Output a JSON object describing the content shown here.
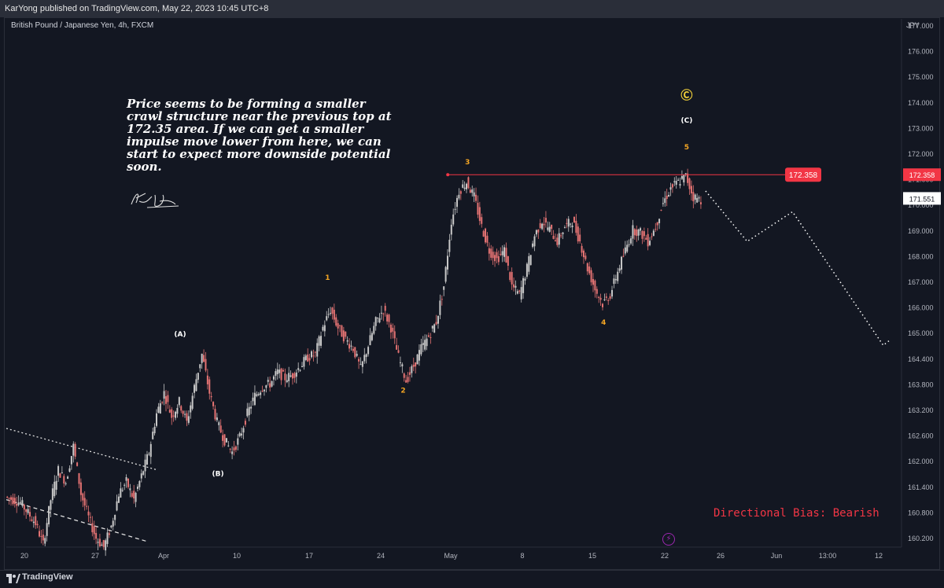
{
  "header": {
    "published": "KarYong published on TradingView.com, May 22, 2023 10:45 UTC+8"
  },
  "chart_data": {
    "type": "candlestick",
    "symbol": "British Pound / Japanese Yen, 4h, FXCM",
    "currency": "JPY",
    "ylim": [
      159.8,
      177.6
    ],
    "y_ticks": [
      "177.000",
      "176.000",
      "175.000",
      "174.000",
      "173.000",
      "172.000",
      "171.000",
      "170.000",
      "169.000",
      "168.000",
      "167.000",
      "166.000",
      "165.000",
      "164.400",
      "163.800",
      "163.200",
      "162.600",
      "162.000",
      "161.400",
      "160.800",
      "160.200"
    ],
    "x_ticks": [
      "20",
      "27",
      "Apr",
      "10",
      "17",
      "24",
      "May",
      "8",
      "15",
      "22",
      "26",
      "Jun",
      "13:00",
      "12"
    ],
    "bull_color": "#c8c8c8",
    "bear_color": "#e57373",
    "price_path": [
      [
        0,
        161.5
      ],
      [
        4,
        161.3
      ],
      [
        8,
        160.6
      ],
      [
        10,
        159.9
      ],
      [
        12,
        161.4
      ],
      [
        14,
        162.4
      ],
      [
        16,
        162.0
      ],
      [
        18,
        163.2
      ],
      [
        20,
        161.6
      ],
      [
        22,
        160.8
      ],
      [
        24,
        160.1
      ],
      [
        26,
        159.8
      ],
      [
        28,
        160.5
      ],
      [
        30,
        161.6
      ],
      [
        32,
        162.0
      ],
      [
        34,
        161.4
      ],
      [
        36,
        162.2
      ],
      [
        38,
        163.0
      ],
      [
        40,
        164.3
      ],
      [
        42,
        165.0
      ],
      [
        44,
        164.2
      ],
      [
        46,
        164.7
      ],
      [
        48,
        164.0
      ],
      [
        50,
        165.2
      ],
      [
        52,
        166.3
      ],
      [
        54,
        165.0
      ],
      [
        56,
        164.0
      ],
      [
        58,
        163.4
      ],
      [
        60,
        163.0
      ],
      [
        62,
        163.5
      ],
      [
        64,
        164.3
      ],
      [
        66,
        164.9
      ],
      [
        68,
        165.2
      ],
      [
        70,
        165.3
      ],
      [
        72,
        165.7
      ],
      [
        74,
        165.5
      ],
      [
        76,
        165.6
      ],
      [
        78,
        165.9
      ],
      [
        80,
        166.2
      ],
      [
        82,
        166.3
      ],
      [
        84,
        167.2
      ],
      [
        86,
        167.8
      ],
      [
        88,
        167.2
      ],
      [
        90,
        166.8
      ],
      [
        92,
        166.5
      ],
      [
        94,
        165.8
      ],
      [
        96,
        166.6
      ],
      [
        98,
        167.4
      ],
      [
        100,
        167.8
      ],
      [
        102,
        167.2
      ],
      [
        104,
        166.2
      ],
      [
        106,
        165.4
      ],
      [
        108,
        165.9
      ],
      [
        110,
        166.5
      ],
      [
        112,
        166.9
      ],
      [
        114,
        167.4
      ],
      [
        116,
        168.6
      ],
      [
        118,
        170.8
      ],
      [
        120,
        171.8
      ],
      [
        122,
        172.1
      ],
      [
        124,
        171.6
      ],
      [
        126,
        170.6
      ],
      [
        128,
        169.8
      ],
      [
        130,
        169.5
      ],
      [
        132,
        169.8
      ],
      [
        134,
        168.6
      ],
      [
        136,
        168.3
      ],
      [
        138,
        169.2
      ],
      [
        140,
        170.3
      ],
      [
        142,
        170.8
      ],
      [
        144,
        170.5
      ],
      [
        146,
        170.1
      ],
      [
        148,
        170.6
      ],
      [
        150,
        170.8
      ],
      [
        152,
        170.1
      ],
      [
        154,
        169.2
      ],
      [
        156,
        168.5
      ],
      [
        158,
        168.0
      ],
      [
        160,
        168.3
      ],
      [
        162,
        169.1
      ],
      [
        164,
        169.8
      ],
      [
        166,
        170.5
      ],
      [
        168,
        170.4
      ],
      [
        170,
        170.1
      ],
      [
        172,
        170.6
      ],
      [
        174,
        171.4
      ],
      [
        176,
        171.9
      ],
      [
        178,
        172.1
      ],
      [
        180,
        172.3
      ],
      [
        182,
        171.6
      ],
      [
        184,
        171.5
      ]
    ],
    "projection_path": [
      [
        185,
        171.8
      ],
      [
        196,
        170.1
      ],
      [
        208,
        171.1
      ],
      [
        232,
        166.6
      ],
      [
        234,
        166.8
      ]
    ],
    "resistance": {
      "value": 172.35,
      "label": "172.358",
      "color": "#f23645"
    },
    "last_price": {
      "label": "171.551",
      "value": 171.55
    },
    "wave_labels": [
      {
        "text": "1",
        "x": 85,
        "y": 168.8,
        "color": "#f5a623"
      },
      {
        "text": "2",
        "x": 105,
        "y": 165.0,
        "color": "#f5a623"
      },
      {
        "text": "3",
        "x": 122,
        "y": 172.7,
        "color": "#f5a623"
      },
      {
        "text": "4",
        "x": 158,
        "y": 167.3,
        "color": "#f5a623"
      },
      {
        "text": "5",
        "x": 180,
        "y": 173.2,
        "color": "#f5a623"
      },
      {
        "text": "(A)",
        "x": 46,
        "y": 166.9,
        "color": "#ffffff"
      },
      {
        "text": "(B)",
        "x": 56,
        "y": 162.2,
        "color": "#ffffff"
      },
      {
        "text": "(C)",
        "x": 180,
        "y": 174.1,
        "color": "#ffffff"
      },
      {
        "text": "Ⓒ",
        "x": 180,
        "y": 174.9,
        "color": "#f5d33a"
      }
    ],
    "trend_lines": [
      {
        "from": [
          0,
          163.8
        ],
        "to": [
          40,
          162.4
        ],
        "style": "dotted"
      },
      {
        "from": [
          0,
          161.4
        ],
        "to": [
          37,
          160.0
        ],
        "style": "dashed"
      }
    ]
  },
  "annotation": "Price seems to be forming a smaller crawl structure near the previous top at 172.35 area. If we can get a smaller impulse move lower from here, we can start to expect more downside potential soon.",
  "bias_text": "Directional Bias: Bearish",
  "footer": {
    "brand": "TradingView"
  }
}
